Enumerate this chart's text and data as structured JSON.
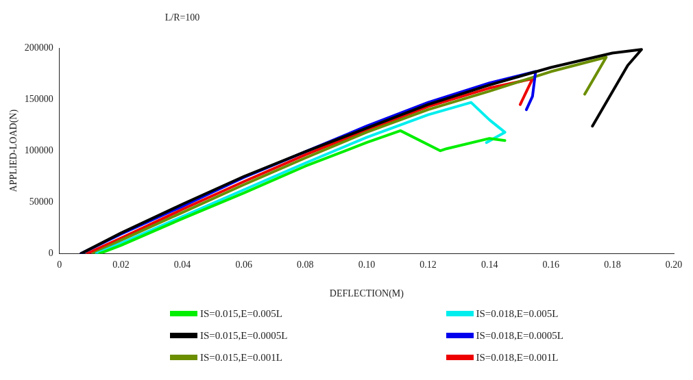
{
  "chart_data": {
    "type": "line",
    "title": "L/R=100",
    "xlabel": "DEFLECTION(M)",
    "ylabel": "APPLIED-LOAD(N)",
    "xlim": [
      0,
      0.2
    ],
    "xticks": [
      {
        "value": 0,
        "label": "0"
      },
      0.02,
      0.04,
      0.06,
      0.08,
      {
        "value": 0.1,
        "label": "0.10"
      },
      0.12,
      0.14,
      0.16,
      0.18,
      {
        "value": 0.2,
        "label": "0.20"
      }
    ],
    "ylim": [
      0,
      200000
    ],
    "yticks": [
      0,
      50000,
      100000,
      150000,
      200000
    ],
    "grid": false,
    "legend": "bottom",
    "marker": "none",
    "line_style": "solid",
    "series": [
      {
        "name": "IS=0.015,E=0.005L",
        "color": "#00ee00",
        "x": [
          0.013,
          0.02,
          0.04,
          0.06,
          0.08,
          0.1,
          0.111,
          0.124,
          0.126,
          0.14,
          0.145
        ],
        "values": [
          0,
          8000,
          34000,
          59000,
          85000,
          108000,
          119500,
          100000,
          102000,
          112000,
          110000
        ]
      },
      {
        "name": "IS=0.018,E=0.005L",
        "color": "#00eeee",
        "x": [
          0.012,
          0.02,
          0.04,
          0.06,
          0.08,
          0.1,
          0.12,
          0.134,
          0.14,
          0.145,
          0.139
        ],
        "values": [
          0,
          10000,
          36000,
          62000,
          88000,
          113000,
          135000,
          147000,
          130000,
          118000,
          108000
        ]
      },
      {
        "name": "IS=0.015,E=0.0005L",
        "color": "#000000",
        "x": [
          0.007,
          0.02,
          0.04,
          0.06,
          0.08,
          0.1,
          0.12,
          0.14,
          0.16,
          0.18,
          0.1895,
          0.185,
          0.1735
        ],
        "values": [
          0,
          20000,
          48000,
          75000,
          99000,
          122000,
          145000,
          164000,
          181000,
          195000,
          198500,
          183000,
          124000
        ]
      },
      {
        "name": "IS=0.018,E=0.0005L",
        "color": "#0000ee",
        "x": [
          0.007,
          0.02,
          0.04,
          0.06,
          0.08,
          0.1,
          0.12,
          0.14,
          0.155,
          0.154,
          0.152
        ],
        "values": [
          0,
          19000,
          46000,
          74000,
          99000,
          124000,
          147000,
          166000,
          177000,
          153000,
          140000
        ]
      },
      {
        "name": "IS=0.015,E=0.001L",
        "color": "#6b8e00",
        "x": [
          0.011,
          0.02,
          0.04,
          0.06,
          0.08,
          0.1,
          0.12,
          0.14,
          0.16,
          0.178,
          0.171
        ],
        "values": [
          0,
          13000,
          40000,
          67000,
          93000,
          118000,
          140000,
          158000,
          177000,
          191000,
          155000
        ]
      },
      {
        "name": "IS=0.018,E=0.001L",
        "color": "#ee0000",
        "x": [
          0.009,
          0.02,
          0.04,
          0.06,
          0.08,
          0.1,
          0.12,
          0.14,
          0.154,
          0.15
        ],
        "values": [
          0,
          15000,
          43000,
          70000,
          96000,
          120000,
          143000,
          161000,
          170000,
          145000
        ]
      }
    ]
  }
}
